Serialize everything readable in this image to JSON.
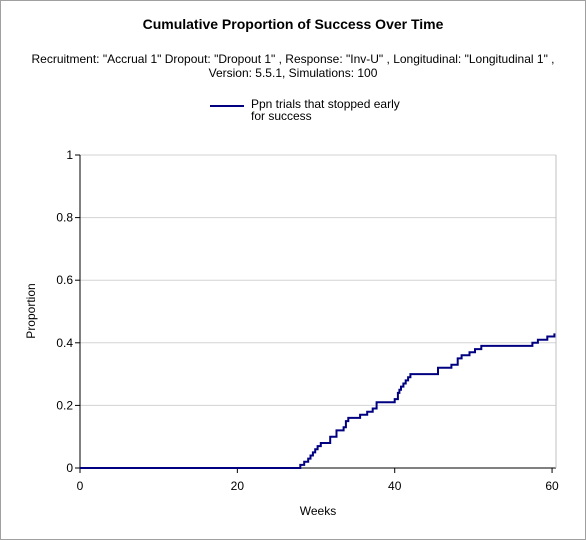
{
  "chart_data": {
    "type": "line",
    "title": "Cumulative Proportion of Success Over Time",
    "subtitle": "Recruitment: \"Accrual 1\" Dropout: \"Dropout 1\" , Response: \"Inv-U\" , Longitudinal: \"Longitudinal 1\" , Version: 5.5.1, Simulations: 100",
    "xlabel": "Weeks",
    "ylabel": "Proportion",
    "xlim": [
      0,
      60.5
    ],
    "ylim": [
      0,
      1
    ],
    "xticks": [
      0,
      20,
      40,
      60
    ],
    "xtick_labels": [
      "0",
      "20",
      "40",
      "60"
    ],
    "yticks": [
      0,
      0.2,
      0.4,
      0.6,
      0.8,
      1
    ],
    "ytick_labels": [
      "0",
      "0.2",
      "0.4",
      "0.6",
      "0.8",
      "1"
    ],
    "grid": "horizontal",
    "legend_position": "top",
    "series": [
      {
        "name": "Ppn trials that stopped early for success",
        "color": "#000080",
        "step": true,
        "x": [
          0,
          28.0,
          28.5,
          29.0,
          29.3,
          29.6,
          29.9,
          30.2,
          30.6,
          31.2,
          31.8,
          32.6,
          33.2,
          33.5,
          33.8,
          34.1,
          35.6,
          36.5,
          37.2,
          37.7,
          38.7,
          40.0,
          40.4,
          40.6,
          40.8,
          41.1,
          41.4,
          41.7,
          42.0,
          42.4,
          42.7,
          43.1,
          45.5,
          47.2,
          48.0,
          48.5,
          49.5,
          50.2,
          51.0,
          52.0,
          57.5,
          58.2,
          59.4,
          60.3
        ],
        "y": [
          0,
          0.01,
          0.02,
          0.03,
          0.04,
          0.05,
          0.06,
          0.07,
          0.08,
          0.08,
          0.1,
          0.12,
          0.12,
          0.13,
          0.15,
          0.16,
          0.17,
          0.18,
          0.19,
          0.21,
          0.21,
          0.22,
          0.24,
          0.25,
          0.26,
          0.27,
          0.28,
          0.29,
          0.3,
          0.3,
          0.3,
          0.3,
          0.32,
          0.33,
          0.35,
          0.36,
          0.37,
          0.38,
          0.39,
          0.39,
          0.4,
          0.41,
          0.42,
          0.43
        ]
      }
    ]
  }
}
